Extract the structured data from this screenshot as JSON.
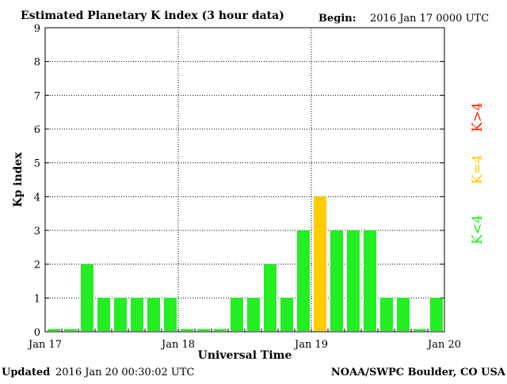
{
  "header": {
    "title": "Estimated Planetary K index (3 hour data)",
    "begin_label": "Begin:",
    "begin_value": "2016 Jan 17 0000 UTC"
  },
  "footer": {
    "updated_label": "Updated",
    "updated_value": "2016 Jan 20 00:30:02 UTC",
    "credit": "NOAA/SWPC Boulder, CO USA"
  },
  "legend": [
    {
      "label": "K<4",
      "color": "#22ee22"
    },
    {
      "label": "K=4",
      "color": "#ffcc00"
    },
    {
      "label": "K>4",
      "color": "#ff2200"
    }
  ],
  "chart_data": {
    "type": "bar",
    "title": "Estimated Planetary K index (3 hour data)",
    "xlabel": "Universal Time",
    "ylabel": "Kp index",
    "ylim": [
      0,
      9
    ],
    "yticks": [
      0,
      1,
      2,
      3,
      4,
      5,
      6,
      7,
      8,
      9
    ],
    "xticks": [
      "Jan 17",
      "Jan 18",
      "Jan 19",
      "Jan 20"
    ],
    "grid": true,
    "colors": {
      "below4": "#22ee22",
      "equal4": "#ffcc00",
      "above4": "#ff2200"
    },
    "values": [
      0,
      0,
      2,
      1,
      1,
      1,
      1,
      1,
      0,
      0,
      0,
      1,
      1,
      2,
      1,
      3,
      4,
      3,
      3,
      3,
      1,
      1,
      0,
      1
    ]
  }
}
